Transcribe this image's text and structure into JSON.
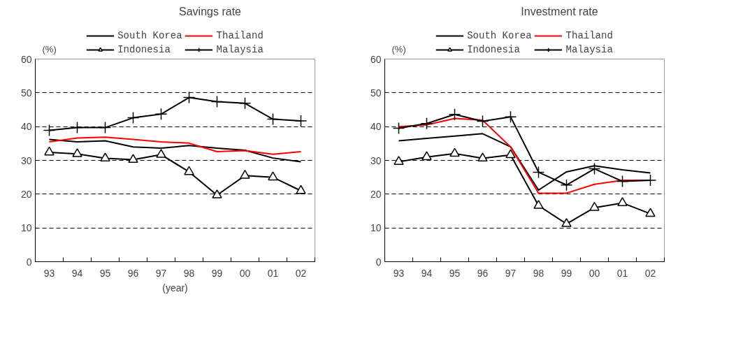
{
  "chart_data": [
    {
      "type": "line",
      "title": "Savings rate",
      "ylabel": "(%)",
      "xlabel": "(year)",
      "categories": [
        "93",
        "94",
        "95",
        "96",
        "97",
        "98",
        "99",
        "00",
        "01",
        "02"
      ],
      "ylim": [
        0,
        60
      ],
      "yticks": [
        0,
        10,
        20,
        30,
        40,
        50,
        60
      ],
      "grid": "y",
      "legend": "top",
      "series": [
        {
          "name": "South Korea",
          "color": "#000000",
          "marker": "none",
          "values": [
            36.2,
            35.5,
            35.8,
            34.0,
            33.6,
            34.4,
            33.6,
            33.0,
            30.7,
            29.6
          ]
        },
        {
          "name": "Thailand",
          "color": "#ff0000",
          "marker": "none",
          "values": [
            35.5,
            36.6,
            36.9,
            36.2,
            35.5,
            35.1,
            32.6,
            32.9,
            31.8,
            32.6
          ]
        },
        {
          "name": "Indonesia",
          "color": "#000000",
          "marker": "triangle",
          "values": [
            32.4,
            31.9,
            30.6,
            30.2,
            31.7,
            26.6,
            19.7,
            25.5,
            25.0,
            21.0
          ]
        },
        {
          "name": "Malaysia",
          "color": "#000000",
          "marker": "cross",
          "values": [
            38.9,
            39.7,
            39.7,
            42.6,
            43.7,
            48.6,
            47.4,
            46.9,
            42.2,
            41.7
          ]
        }
      ]
    },
    {
      "type": "line",
      "title": "Investment rate",
      "ylabel": "(%)",
      "categories": [
        "93",
        "94",
        "95",
        "96",
        "97",
        "98",
        "99",
        "00",
        "01",
        "02"
      ],
      "ylim": [
        0,
        60
      ],
      "yticks": [
        0,
        10,
        20,
        30,
        40,
        50,
        60
      ],
      "grid": "y",
      "legend": "top",
      "series": [
        {
          "name": "South Korea",
          "color": "#000000",
          "marker": "none",
          "values": [
            35.8,
            36.5,
            37.2,
            37.9,
            34.0,
            21.2,
            26.6,
            28.4,
            27.2,
            26.3
          ]
        },
        {
          "name": "Thailand",
          "color": "#ff0000",
          "marker": "none",
          "values": [
            40.0,
            40.5,
            42.4,
            41.9,
            34.0,
            20.3,
            20.3,
            22.9,
            24.1,
            24.1
          ]
        },
        {
          "name": "Indonesia",
          "color": "#000000",
          "marker": "triangle",
          "values": [
            29.6,
            31.0,
            32.0,
            30.6,
            31.6,
            16.6,
            11.2,
            16.0,
            17.4,
            14.2
          ]
        },
        {
          "name": "Malaysia",
          "color": "#000000",
          "marker": "cross",
          "values": [
            39.5,
            40.9,
            43.6,
            41.6,
            42.9,
            26.5,
            22.7,
            27.5,
            23.8,
            24.1
          ]
        }
      ]
    }
  ]
}
